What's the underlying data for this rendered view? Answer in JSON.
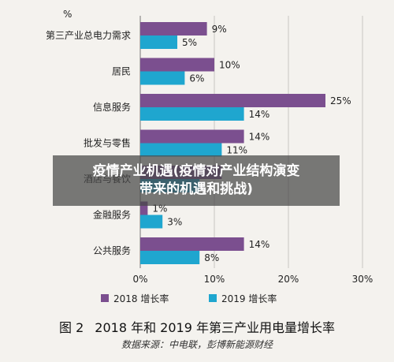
{
  "chart_data": {
    "type": "bar",
    "orientation": "horizontal",
    "unit_label": "%",
    "categories": [
      "第三产业总电力需求",
      "居民",
      "信息服务",
      "批发与零售",
      "酒店与餐饮",
      "金融服务",
      "公共服务"
    ],
    "series": [
      {
        "name": "2018 增长率",
        "color": "#7b4f8f",
        "values": [
          9,
          10,
          25,
          14,
          11,
          1,
          14
        ],
        "labels": [
          "9%",
          "10%",
          "25%",
          "14%",
          "",
          "1%",
          "14%"
        ]
      },
      {
        "name": "2019 增长率",
        "color": "#1fa6cf",
        "values": [
          5,
          6,
          14,
          11,
          8,
          3,
          8
        ],
        "labels": [
          "5%",
          "6%",
          "14%",
          "11%",
          "",
          "3%",
          "8%"
        ]
      }
    ],
    "xlim": [
      0,
      30
    ],
    "xticks": [
      "0%",
      "10%",
      "20%",
      "30%"
    ],
    "grid": true,
    "legend_position": "bottom"
  },
  "overlay": {
    "line1": "疫情产业机遇(疫情对产业结构演变",
    "line2": "带来的机遇和挑战)"
  },
  "caption": {
    "figure_no": "图 2",
    "title": "2018 年和 2019 年第三产业用电量增长率"
  },
  "source": "数据来源：中电联，彭博新能源财经"
}
